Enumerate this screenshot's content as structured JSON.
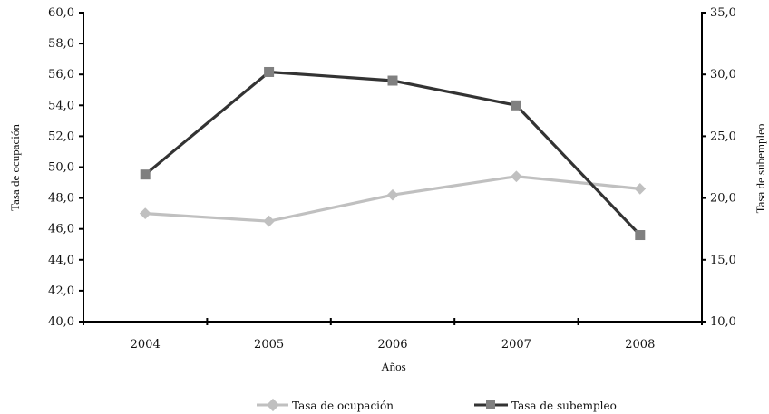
{
  "chart_data": {
    "type": "line",
    "categories": [
      "2004",
      "2005",
      "2006",
      "2007",
      "2008"
    ],
    "xlabel": "Años",
    "ylabel_left": "Tasa de ocupación",
    "ylabel_right": "Tasa de subempleo",
    "y_left": {
      "min": 40,
      "max": 60,
      "step": 2,
      "tick_labels": [
        "40,0",
        "42,0",
        "44,0",
        "46,0",
        "48,0",
        "50,0",
        "52,0",
        "54,0",
        "56,0",
        "58,0",
        "60,0"
      ]
    },
    "y_right": {
      "min": 10,
      "max": 35,
      "step": 5,
      "tick_labels": [
        "10,0",
        "15,0",
        "20,0",
        "25,0",
        "30,0",
        "35,0"
      ]
    },
    "grid": false,
    "legend_position": "bottom",
    "series": [
      {
        "name": "Tasa de ocupación",
        "axis": "left",
        "values": [
          47.0,
          46.5,
          48.2,
          49.4,
          48.6
        ],
        "color": "#c0c0c0",
        "marker": "diamond"
      },
      {
        "name": "Tasa de subempleo",
        "axis": "right",
        "values": [
          21.9,
          30.2,
          29.5,
          27.5,
          17.0
        ],
        "color": "#333333",
        "marker_color": "#808080",
        "marker": "square"
      }
    ]
  }
}
